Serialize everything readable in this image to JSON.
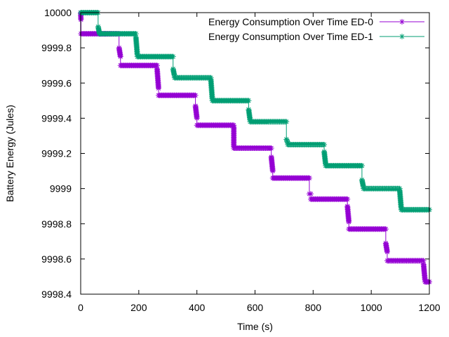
{
  "chart_data": {
    "type": "line",
    "title": "",
    "xlabel": "Time (s)",
    "ylabel": "Battery Energy (Jules)",
    "xlim": [
      0,
      1200
    ],
    "ylim": [
      9998.4,
      10000
    ],
    "xticks": [
      0,
      200,
      400,
      600,
      800,
      1000,
      1200
    ],
    "xtick_labels": [
      "0",
      "200",
      "400",
      "600",
      "800",
      "1000",
      "1200"
    ],
    "yticks": [
      9998.4,
      9998.6,
      9998.8,
      9999,
      9999.2,
      9999.4,
      9999.6,
      9999.8,
      10000
    ],
    "ytick_labels": [
      "9998.4",
      "9998.6",
      "9998.8",
      "9999",
      "9999.2",
      "9999.4",
      "9999.6",
      "9999.8",
      "10000"
    ],
    "grid": false,
    "legend_position": "top-right",
    "series": [
      {
        "name": "Energy Consumption Over Time ED-0",
        "color": "#9400d3",
        "marker": "star",
        "steps": [
          {
            "t0": 0,
            "t1": 1,
            "from": 10000.0,
            "to": 9999.96
          },
          {
            "t0": 1,
            "t1": 132,
            "from": 9999.88,
            "to": 9999.88
          },
          {
            "t0": 132,
            "t1": 137,
            "from": 9999.8,
            "to": 9999.75
          },
          {
            "t0": 137,
            "t1": 263,
            "from": 9999.7,
            "to": 9999.7
          },
          {
            "t0": 263,
            "t1": 268,
            "from": 9999.68,
            "to": 9999.57
          },
          {
            "t0": 268,
            "t1": 395,
            "from": 9999.53,
            "to": 9999.53
          },
          {
            "t0": 395,
            "t1": 400,
            "from": 9999.47,
            "to": 9999.4
          },
          {
            "t0": 400,
            "t1": 527,
            "from": 9999.36,
            "to": 9999.36
          },
          {
            "t0": 527,
            "t1": 527,
            "from": 9999.35,
            "to": 9999.24
          },
          {
            "t0": 527,
            "t1": 656,
            "from": 9999.23,
            "to": 9999.23
          },
          {
            "t0": 656,
            "t1": 661,
            "from": 9999.18,
            "to": 9999.1
          },
          {
            "t0": 661,
            "t1": 787,
            "from": 9999.06,
            "to": 9999.06
          },
          {
            "t0": 787,
            "t1": 792,
            "from": 9998.97,
            "to": 9998.97
          },
          {
            "t0": 792,
            "t1": 918,
            "from": 9998.94,
            "to": 9998.94
          },
          {
            "t0": 918,
            "t1": 923,
            "from": 9998.9,
            "to": 9998.81
          },
          {
            "t0": 923,
            "t1": 1050,
            "from": 9998.77,
            "to": 9998.77
          },
          {
            "t0": 1050,
            "t1": 1055,
            "from": 9998.69,
            "to": 9998.64
          },
          {
            "t0": 1055,
            "t1": 1180,
            "from": 9998.59,
            "to": 9998.59
          },
          {
            "t0": 1180,
            "t1": 1185,
            "from": 9998.57,
            "to": 9998.48
          },
          {
            "t0": 1185,
            "t1": 1200,
            "from": 9998.47,
            "to": 9998.47
          }
        ]
      },
      {
        "name": "Energy Consumption Over Time ED-1",
        "color": "#009e73",
        "marker": "star",
        "steps": [
          {
            "t0": 0,
            "t1": 60,
            "from": 10000.0,
            "to": 10000.0
          },
          {
            "t0": 60,
            "t1": 65,
            "from": 9999.92,
            "to": 9999.88
          },
          {
            "t0": 65,
            "t1": 190,
            "from": 9999.88,
            "to": 9999.88
          },
          {
            "t0": 190,
            "t1": 195,
            "from": 9999.86,
            "to": 9999.76
          },
          {
            "t0": 195,
            "t1": 318,
            "from": 9999.75,
            "to": 9999.75
          },
          {
            "t0": 318,
            "t1": 323,
            "from": 9999.68,
            "to": 9999.64
          },
          {
            "t0": 323,
            "t1": 448,
            "from": 9999.63,
            "to": 9999.63
          },
          {
            "t0": 448,
            "t1": 453,
            "from": 9999.62,
            "to": 9999.51
          },
          {
            "t0": 453,
            "t1": 578,
            "from": 9999.5,
            "to": 9999.5
          },
          {
            "t0": 578,
            "t1": 583,
            "from": 9999.45,
            "to": 9999.39
          },
          {
            "t0": 583,
            "t1": 708,
            "from": 9999.38,
            "to": 9999.38
          },
          {
            "t0": 708,
            "t1": 713,
            "from": 9999.28,
            "to": 9999.26
          },
          {
            "t0": 713,
            "t1": 838,
            "from": 9999.25,
            "to": 9999.25
          },
          {
            "t0": 838,
            "t1": 843,
            "from": 9999.21,
            "to": 9999.14
          },
          {
            "t0": 843,
            "t1": 968,
            "from": 9999.13,
            "to": 9999.13
          },
          {
            "t0": 968,
            "t1": 973,
            "from": 9999.05,
            "to": 9999.01
          },
          {
            "t0": 973,
            "t1": 1098,
            "from": 9999.0,
            "to": 9999.0
          },
          {
            "t0": 1098,
            "t1": 1103,
            "from": 9998.99,
            "to": 9998.89
          },
          {
            "t0": 1103,
            "t1": 1200,
            "from": 9998.88,
            "to": 9998.88
          }
        ]
      }
    ]
  }
}
